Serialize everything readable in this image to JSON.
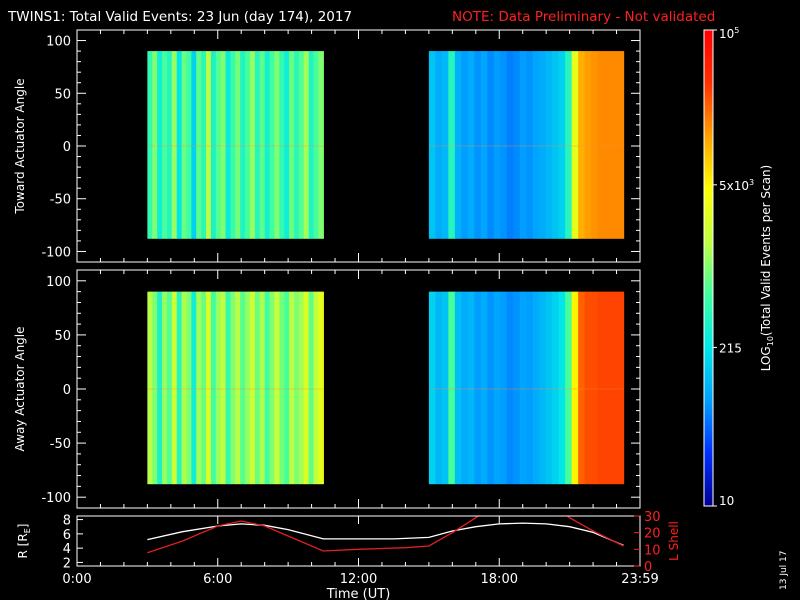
{
  "header": {
    "title": "TWINS1: Total Valid Events: 23 Jun (day 174), 2017",
    "note": "NOTE: Data Preliminary - Not validated",
    "note_color": "#ff2020"
  },
  "footer": {
    "date_stamp": "13 Jul 17"
  },
  "colorbar": {
    "label_main": "LOG",
    "label_sub": "10",
    "label_rest": "(Total Valid Events per Scan)",
    "ticks": [
      {
        "label": "10",
        "value": 10
      },
      {
        "label": "215",
        "value": 215
      },
      {
        "label": "5x10",
        "sup": "3",
        "value": 5000
      },
      {
        "label": "10",
        "sup": "5",
        "value": 100000
      }
    ],
    "range": [
      10,
      100000
    ],
    "scale": "log",
    "colormap": [
      "#000090",
      "#0030ff",
      "#00a0ff",
      "#00e8e8",
      "#40ffa0",
      "#c0ff40",
      "#ffff00",
      "#ffa000",
      "#ff3000",
      "#ff0000"
    ]
  },
  "chart_data": [
    {
      "type": "heatmap",
      "ylabel": "Toward Actuator Angle",
      "ylim": [
        -110,
        110
      ],
      "yticks": [
        -100,
        -50,
        0,
        50,
        100
      ],
      "xlim": [
        0,
        24
      ],
      "xticks": [
        0,
        6,
        12,
        18,
        24
      ],
      "segments": [
        {
          "x": [
            3.0,
            10.5
          ],
          "y": [
            -88,
            90
          ],
          "levels": [
            0.42,
            0.5,
            0.36,
            0.45,
            0.4,
            0.52,
            0.33,
            0.48,
            0.44,
            0.3,
            0.47,
            0.41,
            0.55,
            0.38,
            0.46,
            0.5,
            0.35,
            0.43,
            0.49,
            0.39,
            0.45,
            0.52,
            0.4,
            0.47,
            0.37,
            0.44,
            0.5,
            0.42,
            0.36,
            0.48,
            0.41,
            0.46,
            0.53,
            0.39,
            0.45,
            0.5
          ]
        },
        {
          "x": [
            15.0,
            23.3
          ],
          "y": [
            -88,
            90
          ],
          "levels": [
            0.28,
            0.24,
            0.26,
            0.4,
            0.25,
            0.22,
            0.24,
            0.21,
            0.23,
            0.2,
            0.22,
            0.21,
            0.19,
            0.2,
            0.22,
            0.21,
            0.23,
            0.24,
            0.26,
            0.28,
            0.3,
            0.4,
            0.62,
            0.76,
            0.78,
            0.79,
            0.8,
            0.8,
            0.8,
            0.8
          ]
        }
      ]
    },
    {
      "type": "heatmap",
      "ylabel": "Away Actuator Angle",
      "ylim": [
        -110,
        110
      ],
      "yticks": [
        -100,
        -50,
        0,
        50,
        100
      ],
      "xlim": [
        0,
        24
      ],
      "xticks": [
        0,
        6,
        12,
        18,
        24
      ],
      "segments": [
        {
          "x": [
            3.0,
            10.5
          ],
          "y": [
            -88,
            90
          ],
          "levels": [
            0.55,
            0.5,
            0.38,
            0.52,
            0.46,
            0.58,
            0.4,
            0.54,
            0.5,
            0.36,
            0.53,
            0.48,
            0.6,
            0.44,
            0.52,
            0.56,
            0.42,
            0.5,
            0.55,
            0.46,
            0.52,
            0.58,
            0.48,
            0.54,
            0.44,
            0.5,
            0.57,
            0.49,
            0.45,
            0.55,
            0.5,
            0.53,
            0.6,
            0.47,
            0.56,
            0.62
          ]
        },
        {
          "x": [
            15.0,
            23.3
          ],
          "y": [
            -88,
            90
          ],
          "levels": [
            0.3,
            0.26,
            0.28,
            0.45,
            0.27,
            0.24,
            0.26,
            0.22,
            0.24,
            0.21,
            0.23,
            0.22,
            0.2,
            0.21,
            0.23,
            0.22,
            0.24,
            0.26,
            0.28,
            0.3,
            0.33,
            0.45,
            0.68,
            0.84,
            0.86,
            0.86,
            0.87,
            0.87,
            0.87,
            0.87
          ]
        }
      ]
    },
    {
      "type": "line",
      "xlabel": "Time (UT)",
      "xlim": [
        0,
        24
      ],
      "xticks": [
        0,
        6,
        12,
        18,
        24
      ],
      "xtick_labels": [
        "0:00",
        "6:00",
        "12:00",
        "18:00",
        "23:59"
      ],
      "left_axis": {
        "label": "R [R",
        "label_sub": "E",
        "label_end": "]",
        "ylim": [
          1.5,
          8.5
        ],
        "yticks": [
          2,
          4,
          6,
          8
        ]
      },
      "right_axis": {
        "label": "L Shell",
        "color": "#ff2020",
        "ylim": [
          0,
          30
        ],
        "yticks": [
          0,
          10,
          20,
          30
        ]
      },
      "series": [
        {
          "axis": "left",
          "color": "#ffffff",
          "x": [
            3.0,
            4.5,
            6.0,
            7.0,
            8.0,
            9.0,
            10.5,
            12.0,
            13.5,
            15.0,
            16.0,
            17.0,
            18.0,
            19.0,
            20.0,
            21.0,
            22.0,
            23.3
          ],
          "y": [
            5.2,
            6.3,
            7.1,
            7.4,
            7.2,
            6.6,
            5.3,
            5.3,
            5.3,
            5.5,
            6.4,
            7.0,
            7.4,
            7.5,
            7.4,
            7.0,
            6.2,
            4.4
          ]
        },
        {
          "axis": "right",
          "color": "#e02020",
          "x": [
            3.0,
            4.5,
            6.0,
            7.0,
            8.0,
            9.0,
            10.5,
            12.0,
            14.0,
            15.0,
            16.0,
            17.0,
            17.2,
            20.8,
            21.0,
            22.0,
            23.3
          ],
          "y": [
            8,
            15,
            24,
            27,
            24,
            18,
            9,
            10,
            11,
            12,
            20,
            29,
            31,
            31,
            29,
            21,
            12
          ]
        }
      ]
    }
  ]
}
